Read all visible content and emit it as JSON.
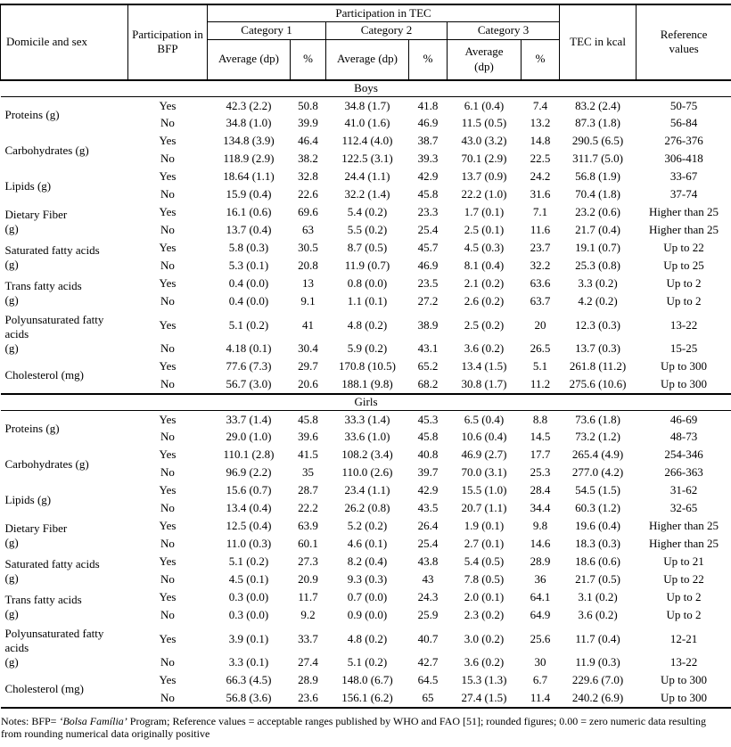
{
  "header": {
    "domicile_sex": "Domicile and sex",
    "bfp": "Participation in BFP",
    "tec_span": "Participation in TEC",
    "categories": [
      "Category 1",
      "Category 2",
      "Category 3"
    ],
    "avg_labels": [
      "Average (dp)",
      "Average (dp)",
      "Average\n(dp)"
    ],
    "pct_label": "%",
    "tec_kcal": "TEC in kcal",
    "reference": "Reference\nvalues"
  },
  "sections": [
    {
      "title": "Boys",
      "groups": [
        {
          "label": "Proteins (g)",
          "yes": [
            "Yes",
            "42.3 (2.2)",
            "50.8",
            "34.8 (1.7)",
            "41.8",
            "6.1 (0.4)",
            "7.4",
            "83.2 (2.4)",
            "50-75"
          ],
          "no": [
            "No",
            "34.8 (1.0)",
            "39.9",
            "41.0 (1.6)",
            "46.9",
            "11.5 (0.5)",
            "13.2",
            "87.3 (1.8)",
            "56-84"
          ]
        },
        {
          "label": "Carbohydrates (g)",
          "yes": [
            "Yes",
            "134.8 (3.9)",
            "46.4",
            "112.4 (4.0)",
            "38.7",
            "43.0 (3.2)",
            "14.8",
            "290.5 (6.5)",
            "276-376"
          ],
          "no": [
            "No",
            "118.9 (2.9)",
            "38.2",
            "122.5 (3.1)",
            "39.3",
            "70.1 (2.9)",
            "22.5",
            "311.7 (5.0)",
            "306-418"
          ]
        },
        {
          "label": "Lipids (g)",
          "yes": [
            "Yes",
            "18.64 (1.1)",
            "32.8",
            "24.4 (1.1)",
            "42.9",
            "13.7 (0.9)",
            "24.2",
            "56.8 (1.9)",
            "33-67"
          ],
          "no": [
            "No",
            "15.9 (0.4)",
            "22.6",
            "32.2 (1.4)",
            "45.8",
            "22.2 (1.0)",
            "31.6",
            "70.4 (1.8)",
            "37-74"
          ]
        },
        {
          "label": "Dietary Fiber\n(g)",
          "yes": [
            "Yes",
            "16.1 (0.6)",
            "69.6",
            "5.4 (0.2)",
            "23.3",
            "1.7 (0.1)",
            "7.1",
            "23.2 (0.6)",
            "Higher than 25"
          ],
          "no": [
            "No",
            "13.7 (0.4)",
            "63",
            "5.5 (0.2)",
            "25.4",
            "2.5 (0.1)",
            "11.6",
            "21.7 (0.4)",
            "Higher than 25"
          ]
        },
        {
          "label": "Saturated fatty acids\n(g)",
          "yes": [
            "Yes",
            "5.8 (0.3)",
            "30.5",
            "8.7 (0.5)",
            "45.7",
            "4.5 (0.3)",
            "23.7",
            "19.1 (0.7)",
            "Up to 22"
          ],
          "no": [
            "No",
            "5.3 (0.1)",
            "20.8",
            "11.9 (0.7)",
            "46.9",
            "8.1 (0.4)",
            "32.2",
            "25.3 (0.8)",
            "Up to 25"
          ]
        },
        {
          "label": "Trans fatty acids\n(g)",
          "yes": [
            "Yes",
            "0.4 (0.0)",
            "13",
            "0.8 (0.0)",
            "23.5",
            "2.1 (0.2)",
            "63.6",
            "3.3 (0.2)",
            "Up to 2"
          ],
          "no": [
            "No",
            "0.4 (0.0)",
            "9.1",
            "1.1 (0.1)",
            "27.2",
            "2.6 (0.2)",
            "63.7",
            "4.2 (0.2)",
            "Up to 2"
          ]
        },
        {
          "label": "Polyunsaturated fatty\nacids\n(g)",
          "tall": true,
          "yes": [
            "Yes",
            "5.1 (0.2)",
            "41",
            "4.8 (0.2)",
            "38.9",
            "2.5 (0.2)",
            "20",
            "12.3 (0.3)",
            "13-22"
          ],
          "no": [
            "No",
            "4.18 (0.1)",
            "30.4",
            "5.9 (0.2)",
            "43.1",
            "3.6 (0.2)",
            "26.5",
            "13.7 (0.3)",
            "15-25"
          ]
        },
        {
          "label": "Cholesterol (mg)",
          "yes": [
            "Yes",
            "77.6 (7.3)",
            "29.7",
            "170.8 (10.5)",
            "65.2",
            "13.4 (1.5)",
            "5.1",
            "261.8 (11.2)",
            "Up to 300"
          ],
          "no": [
            "No",
            "56.7 (3.0)",
            "20.6",
            "188.1 (9.8)",
            "68.2",
            "30.8 (1.7)",
            "11.2",
            "275.6 (10.6)",
            "Up to 300"
          ]
        }
      ]
    },
    {
      "title": "Girls",
      "groups": [
        {
          "label": "Proteins (g)",
          "yes": [
            "Yes",
            "33.7 (1.4)",
            "45.8",
            "33.3 (1.4)",
            "45.3",
            "6.5 (0.4)",
            "8.8",
            "73.6 (1.8)",
            "46-69"
          ],
          "no": [
            "No",
            "29.0 (1.0)",
            "39.6",
            "33.6 (1.0)",
            "45.8",
            "10.6 (0.4)",
            "14.5",
            "73.2 (1.2)",
            "48-73"
          ]
        },
        {
          "label": "Carbohydrates (g)",
          "yes": [
            "Yes",
            "110.1 (2.8)",
            "41.5",
            "108.2 (3.4)",
            "40.8",
            "46.9 (2.7)",
            "17.7",
            "265.4 (4.9)",
            "254-346"
          ],
          "no": [
            "No",
            "96.9 (2.2)",
            "35",
            "110.0 (2.6)",
            "39.7",
            "70.0 (3.1)",
            "25.3",
            "277.0 (4.2)",
            "266-363"
          ]
        },
        {
          "label": "Lipids (g)",
          "yes": [
            "Yes",
            "15.6 (0.7)",
            "28.7",
            "23.4 (1.1)",
            "42.9",
            "15.5 (1.0)",
            "28.4",
            "54.5 (1.5)",
            "31-62"
          ],
          "no": [
            "No",
            "13.4 (0.4)",
            "22.2",
            "26.2 (0.8)",
            "43.5",
            "20.7 (1.1)",
            "34.4",
            "60.3 (1.2)",
            "32-65"
          ]
        },
        {
          "label": "Dietary Fiber\n(g)",
          "yes": [
            "Yes",
            "12.5 (0.4)",
            "63.9",
            "5.2 (0.2)",
            "26.4",
            "1.9 (0.1)",
            "9.8",
            "19.6 (0.4)",
            "Higher than 25"
          ],
          "no": [
            "No",
            "11.0 (0.3)",
            "60.1",
            "4.6 (0.1)",
            "25.4",
            "2.7 (0.1)",
            "14.6",
            "18.3 (0.3)",
            "Higher than 25"
          ]
        },
        {
          "label": "Saturated fatty acids\n(g)",
          "yes": [
            "Yes",
            "5.1 (0.2)",
            "27.3",
            "8.2 (0.4)",
            "43.8",
            "5.4 (0.5)",
            "28.9",
            "18.6 (0.6)",
            "Up to 21"
          ],
          "no": [
            "No",
            "4.5 (0.1)",
            "20.9",
            "9.3 (0.3)",
            "43",
            "7.8 (0.5)",
            "36",
            "21.7 (0.5)",
            "Up to 22"
          ]
        },
        {
          "label": "Trans fatty acids\n(g)",
          "yes": [
            "Yes",
            "0.3 (0.0)",
            "11.7",
            "0.7 (0.0)",
            "24.3",
            "2.0 (0.1)",
            "64.1",
            "3.1 (0.2)",
            "Up to 2"
          ],
          "no": [
            "No",
            "0.3 (0.0)",
            "9.2",
            "0.9 (0.0)",
            "25.9",
            "2.3 (0.2)",
            "64.9",
            "3.6 (0.2)",
            "Up to 2"
          ]
        },
        {
          "label": "Polyunsaturated fatty\nacids\n(g)",
          "tall": true,
          "yes": [
            "Yes",
            "3.9 (0.1)",
            "33.7",
            "4.8 (0.2)",
            "40.7",
            "3.0 (0.2)",
            "25.6",
            "11.7 (0.4)",
            "12-21"
          ],
          "no": [
            "No",
            "3.3 (0.1)",
            "27.4",
            "5.1 (0.2)",
            "42.7",
            "3.6 (0.2)",
            "30",
            "11.9 (0.3)",
            "13-22"
          ]
        },
        {
          "label": "Cholesterol (mg)",
          "yes": [
            "Yes",
            "66.3 (4.5)",
            "28.9",
            "148.0 (6.7)",
            "64.5",
            "15.3 (1.3)",
            "6.7",
            "229.6 (7.0)",
            "Up to 300"
          ],
          "no": [
            "No",
            "56.8 (3.6)",
            "23.6",
            "156.1 (6.2)",
            "65",
            "27.4 (1.5)",
            "11.4",
            "240.2 (6.9)",
            "Up to 300"
          ]
        }
      ]
    }
  ],
  "notes": {
    "part1": "Notes: BFP= ",
    "italic": "‘Bolsa Família’",
    "part2": " Program; Reference values = acceptable ranges published by WHO and FAO [51]; rounded figures; 0.00 = zero numeric data resulting from rounding numerical data originally positive"
  }
}
